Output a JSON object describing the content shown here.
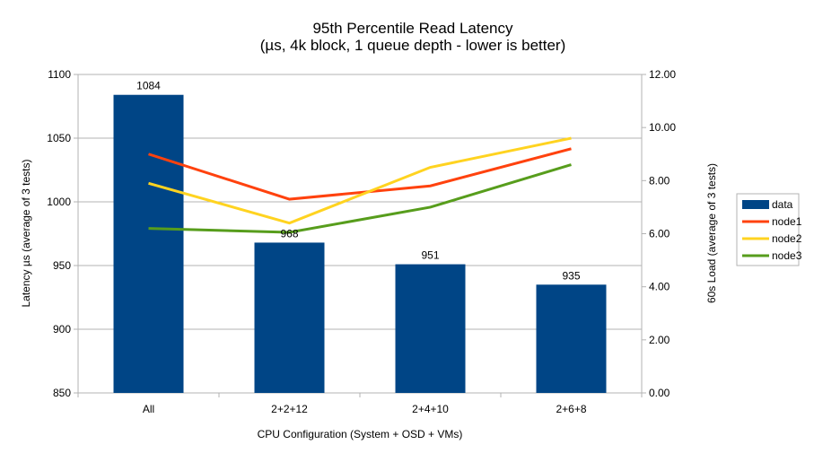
{
  "chart_data": {
    "type": "bar+line",
    "title": "95th Percentile Read Latency",
    "subtitle": "(µs, 4k block, 1 queue depth - lower is better)",
    "xlabel": "CPU Configuration (System + OSD + VMs)",
    "ylabel": "Latency µs (average of 3 tests)",
    "y2label": "60s Load (average of 3 tests)",
    "categories": [
      "All",
      "2+2+12",
      "2+4+10",
      "2+6+8"
    ],
    "ylim": [
      850,
      1100
    ],
    "yticks": [
      "850",
      "900",
      "950",
      "1000",
      "1050",
      "1100"
    ],
    "y2lim": [
      0,
      12
    ],
    "y2ticks": [
      "0.00",
      "2.00",
      "4.00",
      "6.00",
      "8.00",
      "10.00",
      "12.00"
    ],
    "grid": true,
    "legend": "right",
    "bars": {
      "name": "data",
      "color": "#004586",
      "values": [
        1084,
        968,
        951,
        935
      ],
      "labels": [
        "1084",
        "968",
        "951",
        "935"
      ]
    },
    "series": [
      {
        "name": "node1",
        "color": "#ff420e",
        "axis": "right",
        "values": [
          9.0,
          7.3,
          7.8,
          9.2
        ]
      },
      {
        "name": "node2",
        "color": "#ffd320",
        "axis": "right",
        "values": [
          7.9,
          6.4,
          8.5,
          9.6
        ]
      },
      {
        "name": "node3",
        "color": "#579d1c",
        "axis": "right",
        "values": [
          6.2,
          6.05,
          7.0,
          8.6
        ]
      }
    ]
  }
}
